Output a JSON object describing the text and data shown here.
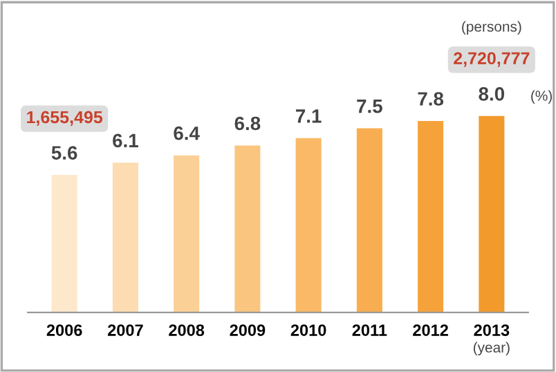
{
  "chart_data": {
    "type": "bar",
    "categories": [
      "2006",
      "2007",
      "2008",
      "2009",
      "2010",
      "2011",
      "2012",
      "2013"
    ],
    "values": [
      5.6,
      6.1,
      6.4,
      6.8,
      7.1,
      7.5,
      7.8,
      8.0
    ],
    "colors": [
      "#fde8cb",
      "#fcdcb0",
      "#fbd096",
      "#fac57f",
      "#f9b966",
      "#f8ae50",
      "#f6a23b",
      "#f39a2c"
    ],
    "value_labels": [
      "5.6",
      "6.1",
      "6.4",
      "6.8",
      "7.1",
      "7.5",
      "7.8",
      "8.0"
    ],
    "xlabel": "(year)",
    "annotations": [
      "1,655,495",
      "(persons)",
      "2,720,777",
      "(%)"
    ],
    "grid": false,
    "legend": false
  }
}
